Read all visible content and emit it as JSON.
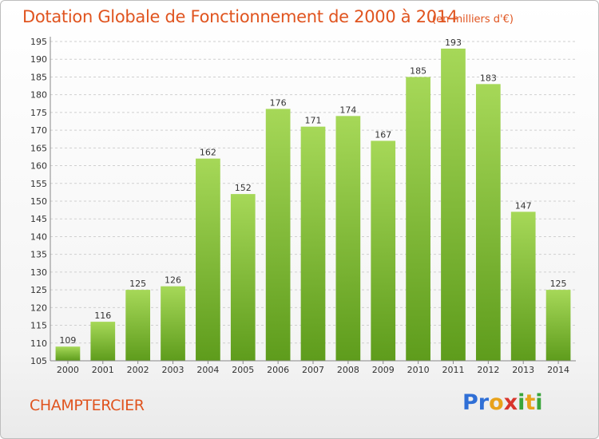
{
  "title": "Dotation Globale de Fonctionnement de 2000 à 2014",
  "unit_note": "(en milliers d'€)",
  "commune": "CHAMPTERCIER",
  "logo": {
    "text": "Proxiti",
    "letters": [
      "P",
      "r",
      "o",
      "x",
      "i",
      "t",
      "i"
    ]
  },
  "colors": {
    "title": "#e0541f",
    "bar_top": "#a6d858",
    "bar_bottom": "#5e9c1c",
    "grid": "#cfcfcf"
  },
  "chart_data": {
    "type": "bar",
    "title": "Dotation Globale de Fonctionnement de 2000 à 2014",
    "subtitle": "(en milliers d'€)",
    "xlabel": "",
    "ylabel": "",
    "categories": [
      "2000",
      "2001",
      "2002",
      "2003",
      "2004",
      "2005",
      "2006",
      "2007",
      "2008",
      "2009",
      "2010",
      "2011",
      "2012",
      "2013",
      "2014"
    ],
    "values": [
      109,
      116,
      125,
      126,
      162,
      152,
      176,
      171,
      174,
      167,
      185,
      193,
      183,
      147,
      125
    ],
    "ylim": [
      105,
      195
    ],
    "yticks": [
      105,
      110,
      115,
      120,
      125,
      130,
      135,
      140,
      145,
      150,
      155,
      160,
      165,
      170,
      175,
      180,
      185,
      190,
      195
    ],
    "grid": true,
    "legend": "none",
    "data_labels": true
  }
}
